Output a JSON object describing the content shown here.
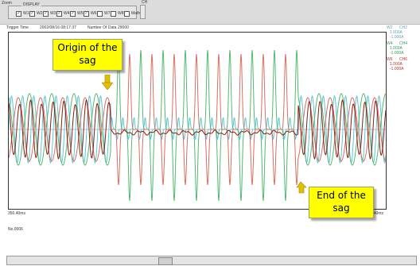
{
  "toolbar": {
    "zoom_label": "Zoom",
    "display_legend": "DISPLAY",
    "channels": [
      {
        "label": "W1",
        "checked": true
      },
      {
        "label": "W2",
        "checked": true
      },
      {
        "label": "W3",
        "checked": true
      },
      {
        "label": "W4",
        "checked": true
      },
      {
        "label": "W5",
        "checked": true
      },
      {
        "label": "W6",
        "checked": true
      },
      {
        "label": "W7",
        "checked": false
      },
      {
        "label": "W8",
        "checked": false
      },
      {
        "label": "Math",
        "checked": false
      }
    ],
    "ch_label": "CH"
  },
  "info": {
    "trigger_label": "Trigger Time",
    "trigger_value": "2002/08/16  08:17:37",
    "data_count_label": "Number Of Data",
    "data_count_value": "29000"
  },
  "legend": {
    "entries": [
      {
        "id": "W2",
        "ch": "CH2",
        "top": "1.000A",
        "bottom": "-1.000A",
        "color": "#6a9fb5"
      },
      {
        "id": "W4",
        "ch": "CH4",
        "top": "1.000A",
        "bottom": "-1.000A",
        "color": "#3a9a5a"
      },
      {
        "id": "W6",
        "ch": "CH6",
        "top": "1.000A",
        "bottom": "-1.000A",
        "color": "#b03a2e"
      }
    ]
  },
  "axis": {
    "start_time": "350.40ms",
    "end_time": "550.40ms"
  },
  "record_label": "No.0006",
  "callouts": {
    "origin": "Origin of the sag",
    "end": "End of the sag"
  },
  "colors": {
    "cyan": "#5bc8d8",
    "green": "#55b870",
    "red": "#d67060",
    "dark_red": "#8b1a10",
    "callout": "#ffff00",
    "arrow": "#e0c000"
  }
}
